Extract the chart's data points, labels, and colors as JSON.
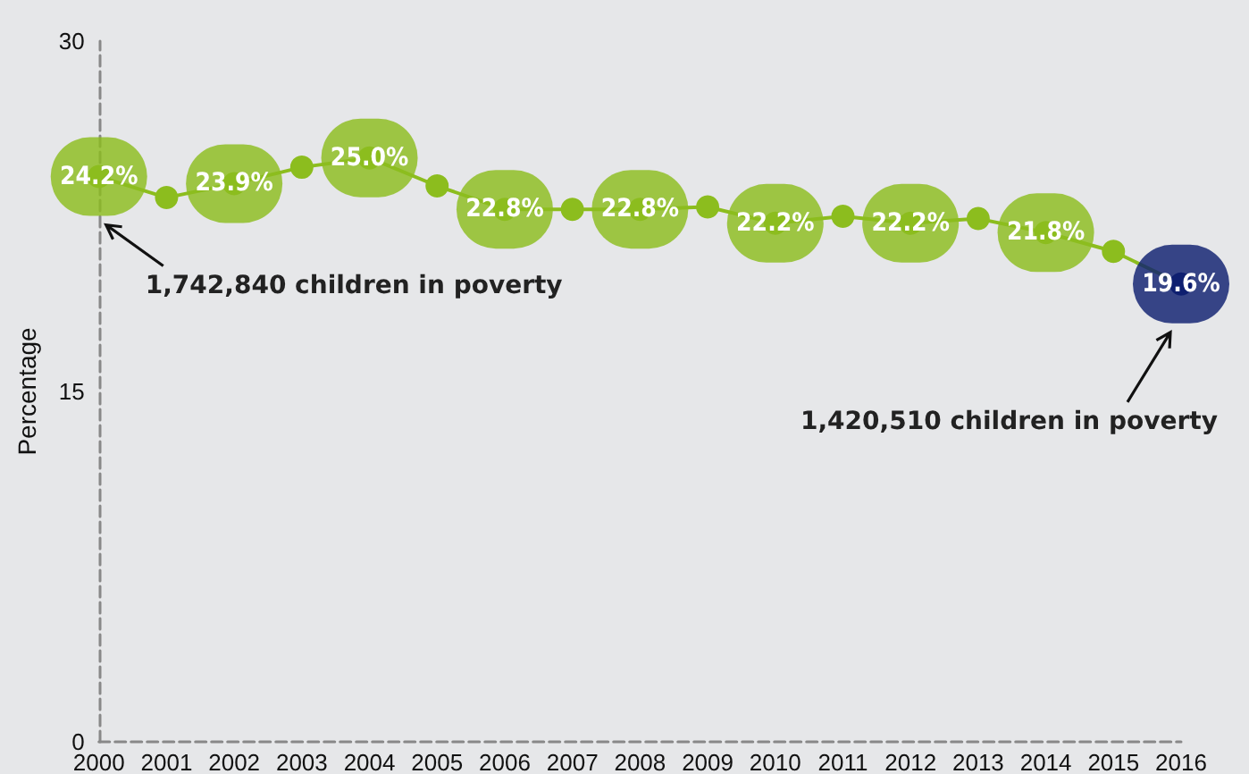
{
  "chart_data": {
    "type": "line",
    "ylabel": "Percentage",
    "categories": [
      "2000",
      "2001",
      "2002",
      "2003",
      "2004",
      "2005",
      "2006",
      "2007",
      "2008",
      "2009",
      "2010",
      "2011",
      "2012",
      "2013",
      "2014",
      "2015",
      "2016"
    ],
    "values": [
      24.2,
      23.3,
      23.9,
      24.6,
      25.0,
      23.8,
      22.8,
      22.8,
      22.8,
      22.9,
      22.2,
      22.5,
      22.2,
      22.4,
      21.8,
      21.0,
      19.6
    ],
    "value_labels": [
      "24.2%",
      null,
      "23.9%",
      null,
      "25.0%",
      null,
      "22.8%",
      null,
      "22.8%",
      null,
      "22.2%",
      null,
      "22.2%",
      null,
      "21.8%",
      null,
      "19.6%"
    ],
    "color": "#8cbd1e",
    "colors": [
      "#8cbd1e",
      "#8cbd1e",
      "#8cbd1e",
      "#8cbd1e",
      "#8cbd1e",
      "#8cbd1e",
      "#8cbd1e",
      "#8cbd1e",
      "#8cbd1e",
      "#8cbd1e",
      "#8cbd1e",
      "#8cbd1e",
      "#8cbd1e",
      "#8cbd1e",
      "#8cbd1e",
      "#8cbd1e",
      "#0f2070"
    ],
    "ylim": [
      0,
      30
    ],
    "yticks": [
      0,
      15,
      30
    ],
    "grid": false,
    "marker": "circle",
    "line_style": "solid",
    "annotations": [
      "1,742,840 children in poverty",
      "1,420,510 children in poverty"
    ]
  }
}
